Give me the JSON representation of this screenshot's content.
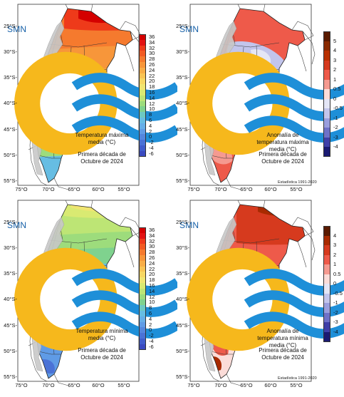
{
  "logo": {
    "text": "SMN",
    "icon": "smn-sun-wave-icon"
  },
  "lat_ticks": [
    "25°S-",
    "30°S-",
    "35°S-",
    "40°S-",
    "45°S-",
    "50°S-",
    "55°S-"
  ],
  "lon_ticks": [
    "75°O",
    "70°O",
    "65°O",
    "60°O",
    "55°O"
  ],
  "panels": [
    {
      "caption_title": "Temperatura máxima media (°C)",
      "caption_period": "Primera década de Octubre de 2024",
      "stats_note": "",
      "legend_labels": [
        "36",
        "34",
        "32",
        "30",
        "28",
        "26",
        "24",
        "22",
        "20",
        "18",
        "16",
        "14",
        "12",
        "10",
        "8",
        "6",
        "4",
        "2",
        "0",
        "-2",
        "-4",
        "-6"
      ],
      "legend_colors": [
        "#d40000",
        "#e21212",
        "#ee3a1a",
        "#f25a22",
        "#f57a2e",
        "#f7963a",
        "#f8ad47",
        "#f9c454",
        "#f7d763",
        "#f0e571",
        "#d9ea72",
        "#bde575",
        "#9ddc7c",
        "#7fd28e",
        "#6cc9c3",
        "#66bde3",
        "#65aee8",
        "#5f9be6",
        "#5486de",
        "#4a72d6",
        "#405dcc",
        "#3a4ac0"
      ]
    },
    {
      "caption_title": "Anomalía de temperatura máxima media (°C)",
      "caption_period": "Primera década de Octubre de 2024",
      "stats_note": "Estadística 1991-2020",
      "legend_labels": [
        "5",
        "4",
        "3",
        "2",
        "1",
        "0.5",
        "0",
        "-0.5",
        "-1",
        "-2",
        "-3",
        "-4"
      ],
      "legend_colors": [
        "#5a1a00",
        "#8a2a00",
        "#b83000",
        "#d63a1e",
        "#ee5a4a",
        "#f59a90",
        "#fbdcd8",
        "#e4e6f6",
        "#c2c5ec",
        "#9a9edd",
        "#6e71c8",
        "#3f3fa8",
        "#1a1a72"
      ]
    },
    {
      "caption_title": "Temperatura mínima media (°C)",
      "caption_period": "Primera década de Octubre de 2024",
      "stats_note": "",
      "legend_labels": [
        "36",
        "34",
        "32",
        "30",
        "28",
        "26",
        "24",
        "22",
        "20",
        "18",
        "16",
        "14",
        "12",
        "10",
        "8",
        "6",
        "4",
        "2",
        "0",
        "-2",
        "-4",
        "-6"
      ],
      "legend_colors": [
        "#d40000",
        "#e21212",
        "#ee3a1a",
        "#f25a22",
        "#f57a2e",
        "#f7963a",
        "#f8ad47",
        "#f9c454",
        "#f7d763",
        "#f0e571",
        "#d9ea72",
        "#bde575",
        "#9ddc7c",
        "#7fd28e",
        "#6cc9c3",
        "#66bde3",
        "#65aee8",
        "#5f9be6",
        "#5486de",
        "#4a72d6",
        "#405dcc",
        "#3a4ac0"
      ]
    },
    {
      "caption_title": "Anomalía de temperatura mínima media (°C)",
      "caption_period": "Primera década de Octubre de 2024",
      "stats_note": "Estadística 1991-2020",
      "legend_labels": [
        "4",
        "3",
        "2",
        "1",
        "0.5",
        "0",
        "-0.5",
        "-1",
        "-2",
        "-3",
        "-4"
      ],
      "legend_colors": [
        "#5a1a00",
        "#a82a00",
        "#d63a1e",
        "#ee5a4a",
        "#f59a90",
        "#fbdcd8",
        "#e4e6f6",
        "#c2c5ec",
        "#9a9edd",
        "#6e71c8",
        "#3f3fa8",
        "#1a1a72"
      ]
    }
  ]
}
